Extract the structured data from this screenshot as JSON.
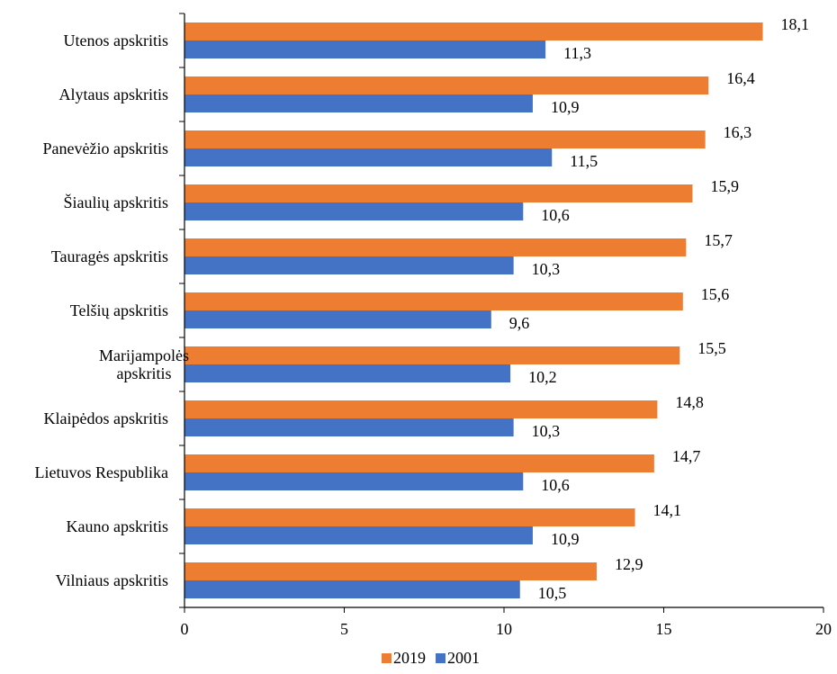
{
  "chart_data": {
    "type": "bar",
    "orientation": "horizontal",
    "categories": [
      [
        "Utenos apskritis"
      ],
      [
        "Alytaus apskritis"
      ],
      [
        "Panevėžio apskritis"
      ],
      [
        "Šiaulių apskritis"
      ],
      [
        "Tauragės apskritis"
      ],
      [
        "Telšių apskritis"
      ],
      [
        "Marijampolės",
        "apskritis"
      ],
      [
        "Klaipėdos apskritis"
      ],
      [
        "Lietuvos Respublika"
      ],
      [
        "Kauno apskritis"
      ],
      [
        "Vilniaus apskritis"
      ]
    ],
    "series": [
      {
        "name": "2019",
        "color": "#ED7D31",
        "values": [
          18.1,
          16.4,
          16.3,
          15.9,
          15.7,
          15.6,
          15.5,
          14.8,
          14.7,
          14.1,
          12.9
        ],
        "labels": [
          "18,1",
          "16,4",
          "16,3",
          "15,9",
          "15,7",
          "15,6",
          "15,5",
          "14,8",
          "14,7",
          "14,1",
          "12,9"
        ]
      },
      {
        "name": "2001",
        "color": "#4472C4",
        "values": [
          11.3,
          10.9,
          11.5,
          10.6,
          10.3,
          9.6,
          10.2,
          10.3,
          10.6,
          10.9,
          10.5
        ],
        "labels": [
          "11,3",
          "10,9",
          "11,5",
          "10,6",
          "10,3",
          "9,6",
          "10,2",
          "10,3",
          "10,6",
          "10,9",
          "10,5"
        ]
      }
    ],
    "xlim": [
      0,
      20
    ],
    "xticks": [
      0,
      5,
      10,
      15,
      20
    ],
    "xtick_labels": [
      "0",
      "5",
      "10",
      "15",
      "20"
    ],
    "grid": false,
    "legend": "bottom",
    "title": "",
    "xlabel": "",
    "ylabel": ""
  }
}
